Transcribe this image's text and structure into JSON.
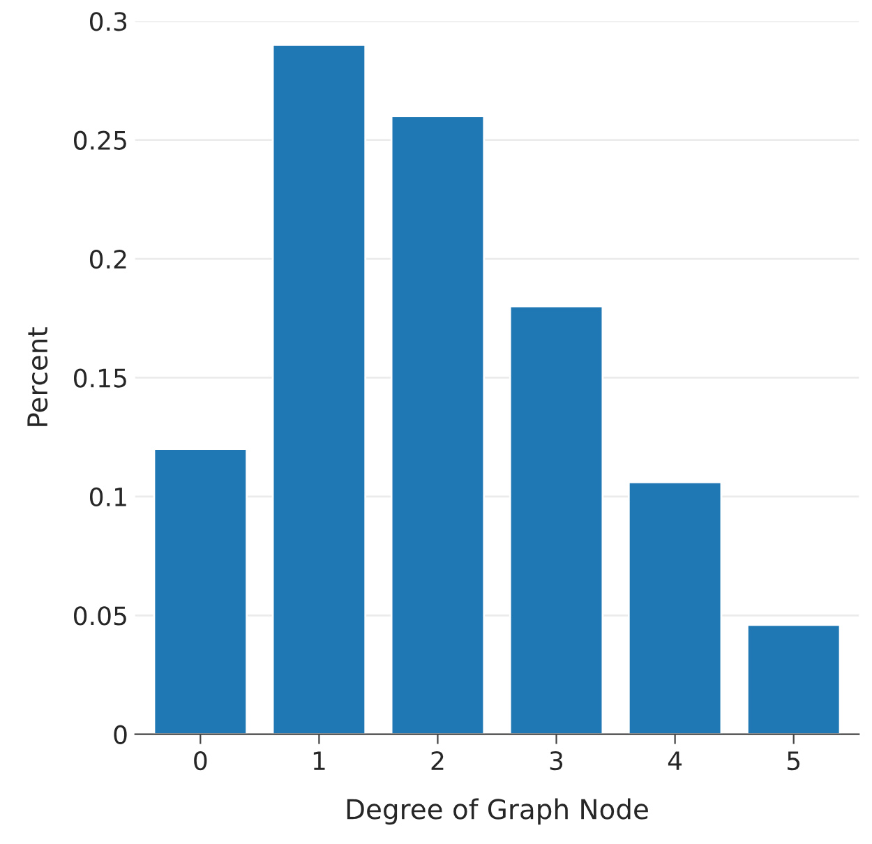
{
  "chart_data": {
    "type": "bar",
    "xlabel": "Degree of Graph Node",
    "ylabel": "Percent",
    "categories": [
      "0",
      "1",
      "2",
      "3",
      "4",
      "5"
    ],
    "values": [
      0.12,
      0.29,
      0.26,
      0.18,
      0.106,
      0.046
    ],
    "color": "#1f77b4",
    "ylim": [
      0,
      0.3
    ],
    "yticks": [
      0,
      0.05,
      0.1,
      0.15,
      0.2,
      0.25,
      0.3
    ],
    "grid": "y"
  }
}
